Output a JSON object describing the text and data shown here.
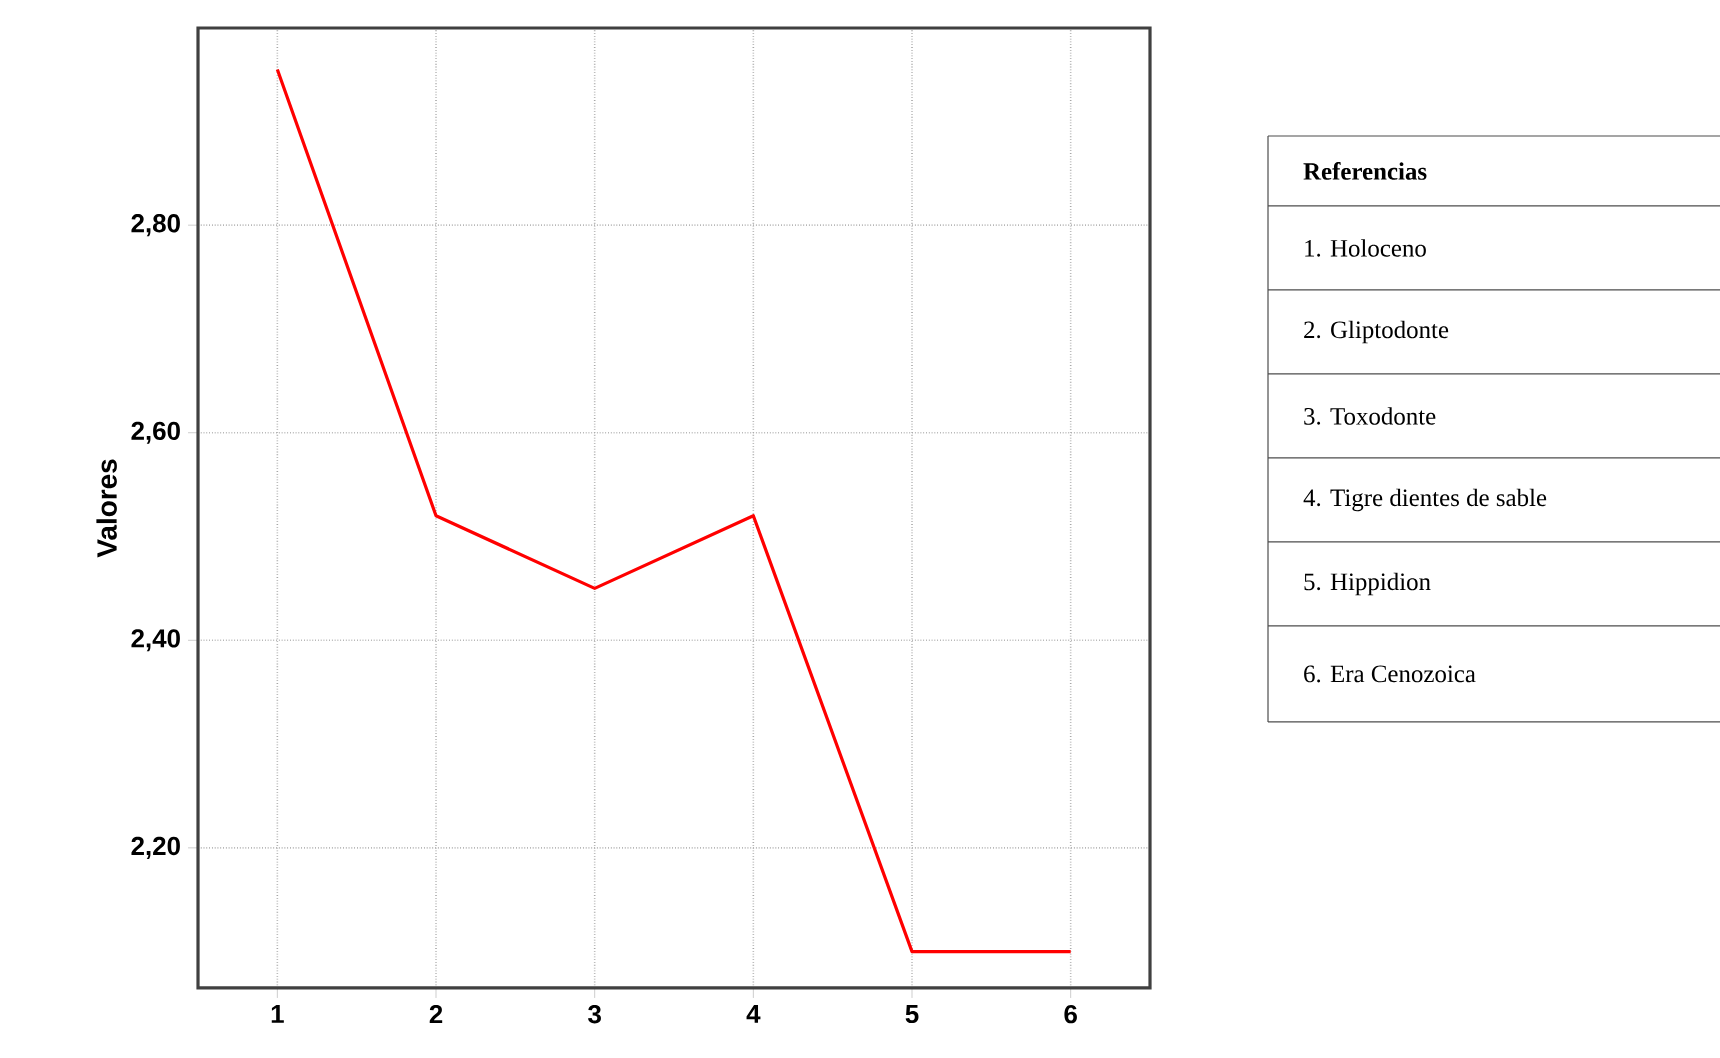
{
  "chart_data": {
    "type": "line",
    "ylabel": "Valores",
    "categories": [
      "1",
      "2",
      "3",
      "4",
      "5",
      "6"
    ],
    "series": [
      {
        "color": "#ff0000",
        "values": [
          2.95,
          2.52,
          2.45,
          2.52,
          2.1,
          2.1
        ]
      }
    ],
    "ylim": [
      2.065,
      2.99
    ],
    "yticks": [
      {
        "value": 2.2,
        "label": "2,20"
      },
      {
        "value": 2.4,
        "label": "2,40"
      },
      {
        "value": 2.6,
        "label": "2,60"
      },
      {
        "value": 2.8,
        "label": "2,80"
      }
    ],
    "grid": true,
    "marker": "none",
    "line_style": "solid",
    "annotations": [
      "Referencias",
      "1. Holoceno",
      "2. Gliptodonte",
      "3. Toxodonte",
      "4. Tigre dientes de sable",
      "5. Hippidion",
      "6. Era Cenozoica"
    ]
  }
}
